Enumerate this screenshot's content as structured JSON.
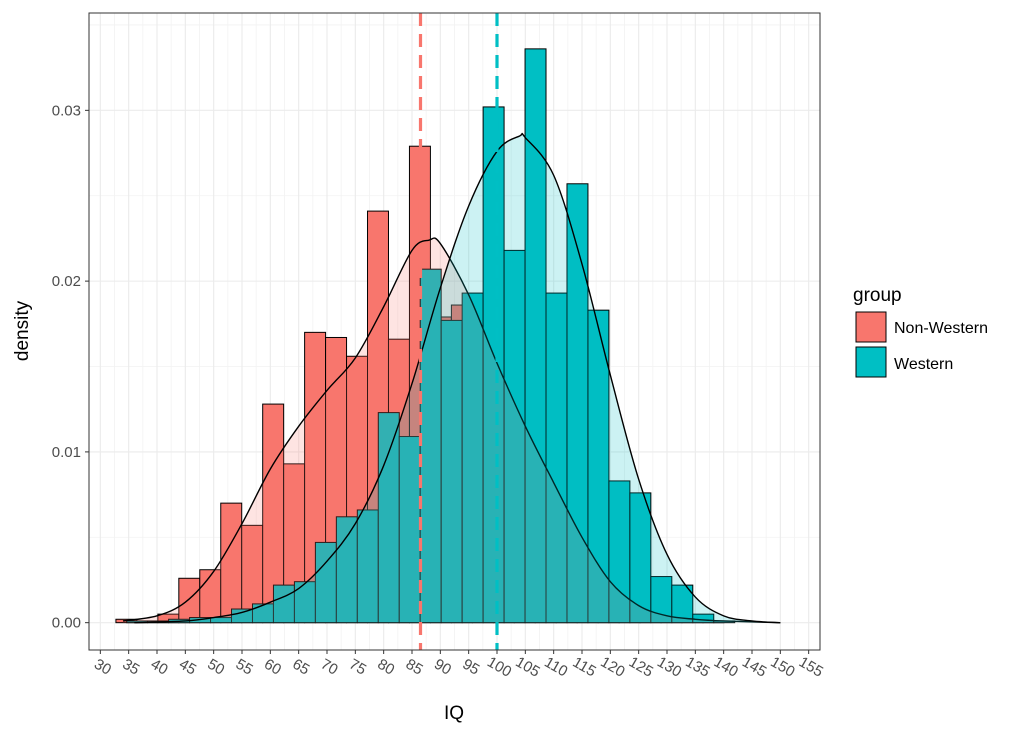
{
  "chart_data": {
    "type": "bar",
    "subtype": "histogram with density overlay",
    "xlabel": "IQ",
    "ylabel": "density",
    "xlim": [
      28,
      157
    ],
    "ylim": [
      -0.0016,
      0.0357
    ],
    "x_ticks": [
      30,
      35,
      40,
      45,
      50,
      55,
      60,
      65,
      70,
      75,
      80,
      85,
      90,
      95,
      100,
      105,
      110,
      115,
      120,
      125,
      130,
      135,
      140,
      145,
      150,
      155
    ],
    "x_tick_labels": [
      "30",
      "35",
      "40",
      "45",
      "50",
      "55",
      "60",
      "65",
      "70",
      "75",
      "80",
      "85",
      "90",
      "95",
      "100",
      "105",
      "110",
      "115",
      "120",
      "125",
      "130",
      "135",
      "140",
      "145",
      "150",
      "155"
    ],
    "y_ticks": [
      0.0,
      0.01,
      0.02,
      0.03
    ],
    "y_tick_labels": [
      "0.00",
      "0.01",
      "0.02",
      "0.03"
    ],
    "grid": true,
    "bin_width": 3.7,
    "legend": {
      "title": "group",
      "position": "right",
      "entries": [
        "Non-Western",
        "Western"
      ]
    },
    "series": [
      {
        "name": "Non-Western",
        "color": "#F8766D",
        "bins": [
          {
            "x": 34.6,
            "y": 0.0002
          },
          {
            "x": 38.3,
            "y": 0.0001
          },
          {
            "x": 42.0,
            "y": 0.0005
          },
          {
            "x": 45.7,
            "y": 0.0026
          },
          {
            "x": 49.4,
            "y": 0.0031
          },
          {
            "x": 53.1,
            "y": 0.007
          },
          {
            "x": 56.8,
            "y": 0.0057
          },
          {
            "x": 60.5,
            "y": 0.0128
          },
          {
            "x": 64.2,
            "y": 0.0093
          },
          {
            "x": 67.9,
            "y": 0.017
          },
          {
            "x": 71.6,
            "y": 0.0167
          },
          {
            "x": 75.3,
            "y": 0.0156
          },
          {
            "x": 79.0,
            "y": 0.0241
          },
          {
            "x": 82.7,
            "y": 0.0166
          },
          {
            "x": 86.4,
            "y": 0.0279
          },
          {
            "x": 90.1,
            "y": 0.0179
          },
          {
            "x": 93.8,
            "y": 0.0186
          },
          {
            "x": 97.5,
            "y": 0.0182
          },
          {
            "x": 101.2,
            "y": 0.0131
          },
          {
            "x": 104.9,
            "y": 0.0199
          },
          {
            "x": 108.6,
            "y": 0.0087
          },
          {
            "x": 112.3,
            "y": 0.0101
          },
          {
            "x": 116.0,
            "y": 0.0056
          },
          {
            "x": 119.7,
            "y": 0.0009
          },
          {
            "x": 123.4,
            "y": 0.0008
          },
          {
            "x": 127.1,
            "y": 0.0004
          },
          {
            "x": 130.8,
            "y": 0.0003
          },
          {
            "x": 134.5,
            "y": 0.0002
          },
          {
            "x": 138.2,
            "y": 0.0001
          },
          {
            "x": 141.9,
            "y": 0.0
          }
        ],
        "density": [
          [
            34,
            0.0001
          ],
          [
            40,
            0.0004
          ],
          [
            45,
            0.0012
          ],
          [
            50,
            0.003
          ],
          [
            55,
            0.0058
          ],
          [
            60,
            0.009
          ],
          [
            65,
            0.0115
          ],
          [
            70,
            0.0136
          ],
          [
            75,
            0.0155
          ],
          [
            80,
            0.0185
          ],
          [
            85,
            0.0218
          ],
          [
            88,
            0.0224
          ],
          [
            90,
            0.0222
          ],
          [
            95,
            0.0192
          ],
          [
            100,
            0.0152
          ],
          [
            105,
            0.0115
          ],
          [
            110,
            0.0082
          ],
          [
            115,
            0.005
          ],
          [
            120,
            0.0024
          ],
          [
            125,
            0.001
          ],
          [
            130,
            0.0004
          ],
          [
            135,
            0.0002
          ],
          [
            140,
            0.0001
          ],
          [
            150,
            0.0
          ]
        ],
        "mean": 86.5
      },
      {
        "name": "Western",
        "color": "#00BFC4",
        "bins": [
          {
            "x": 36.5,
            "y": 0.0001
          },
          {
            "x": 40.2,
            "y": 0.0001
          },
          {
            "x": 43.9,
            "y": 0.0002
          },
          {
            "x": 47.6,
            "y": 0.0003
          },
          {
            "x": 51.3,
            "y": 0.0003
          },
          {
            "x": 55.0,
            "y": 0.0008
          },
          {
            "x": 58.7,
            "y": 0.0011
          },
          {
            "x": 62.4,
            "y": 0.0022
          },
          {
            "x": 66.1,
            "y": 0.0024
          },
          {
            "x": 69.8,
            "y": 0.0047
          },
          {
            "x": 73.5,
            "y": 0.0062
          },
          {
            "x": 77.2,
            "y": 0.0066
          },
          {
            "x": 80.9,
            "y": 0.0123
          },
          {
            "x": 84.6,
            "y": 0.0109
          },
          {
            "x": 88.3,
            "y": 0.0207
          },
          {
            "x": 92.0,
            "y": 0.0177
          },
          {
            "x": 95.7,
            "y": 0.0193
          },
          {
            "x": 99.4,
            "y": 0.0302
          },
          {
            "x": 103.1,
            "y": 0.0218
          },
          {
            "x": 106.8,
            "y": 0.0336
          },
          {
            "x": 110.5,
            "y": 0.0193
          },
          {
            "x": 114.2,
            "y": 0.0257
          },
          {
            "x": 117.9,
            "y": 0.0183
          },
          {
            "x": 121.6,
            "y": 0.0083
          },
          {
            "x": 125.3,
            "y": 0.0076
          },
          {
            "x": 129.0,
            "y": 0.0027
          },
          {
            "x": 132.7,
            "y": 0.0022
          },
          {
            "x": 136.4,
            "y": 0.0005
          },
          {
            "x": 140.1,
            "y": 0.0001
          }
        ],
        "density": [
          [
            36,
            0.0
          ],
          [
            45,
            0.0001
          ],
          [
            50,
            0.0003
          ],
          [
            55,
            0.0006
          ],
          [
            60,
            0.0012
          ],
          [
            65,
            0.002
          ],
          [
            70,
            0.0036
          ],
          [
            75,
            0.0058
          ],
          [
            80,
            0.0092
          ],
          [
            85,
            0.014
          ],
          [
            90,
            0.0196
          ],
          [
            95,
            0.0244
          ],
          [
            100,
            0.0276
          ],
          [
            104,
            0.0285
          ],
          [
            105,
            0.0284
          ],
          [
            110,
            0.0262
          ],
          [
            115,
            0.021
          ],
          [
            120,
            0.0145
          ],
          [
            125,
            0.0084
          ],
          [
            130,
            0.004
          ],
          [
            135,
            0.0015
          ],
          [
            140,
            0.0004
          ],
          [
            145,
            0.0001
          ],
          [
            150,
            0.0
          ]
        ],
        "mean": 100.0
      }
    ]
  }
}
